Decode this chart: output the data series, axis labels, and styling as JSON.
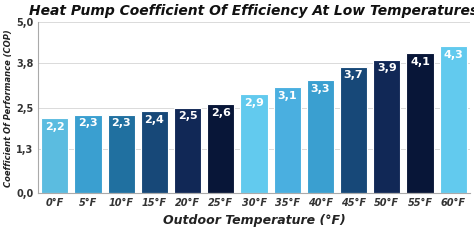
{
  "title": "Heat Pump Coefficient Of Efficiency At Low Temperatures",
  "xlabel": "Outdoor Temperature (°F)",
  "ylabel": "Coefficient Of Performance (COP)",
  "categories": [
    "0°F",
    "5°F",
    "10°F",
    "15°F",
    "20°F",
    "25°F",
    "30°F",
    "35°F",
    "40°F",
    "45°F",
    "50°F",
    "55°F",
    "60°F"
  ],
  "values": [
    2.2,
    2.3,
    2.3,
    2.4,
    2.5,
    2.6,
    2.9,
    3.1,
    3.3,
    3.7,
    3.9,
    4.1,
    4.3
  ],
  "bar_colors": [
    "#5BBDE0",
    "#3A96CA",
    "#2070A8",
    "#174E80",
    "#112D60",
    "#0A1A40",
    "#60C8EE",
    "#4AAFE0",
    "#3A96CA",
    "#174E80",
    "#112D60",
    "#0A1A40",
    "#60C8EE"
  ],
  "ylim": [
    0,
    5.0
  ],
  "yticks": [
    0.0,
    1.3,
    2.5,
    3.8,
    5.0
  ],
  "ytick_labels": [
    "0,0",
    "1,3",
    "2,5",
    "3,8",
    "5,0"
  ],
  "label_color": "#FFFFFF",
  "background_color": "#FFFFFF",
  "title_fontsize": 10,
  "label_fontsize": 8,
  "axis_fontsize": 7,
  "bar_width": 0.82
}
